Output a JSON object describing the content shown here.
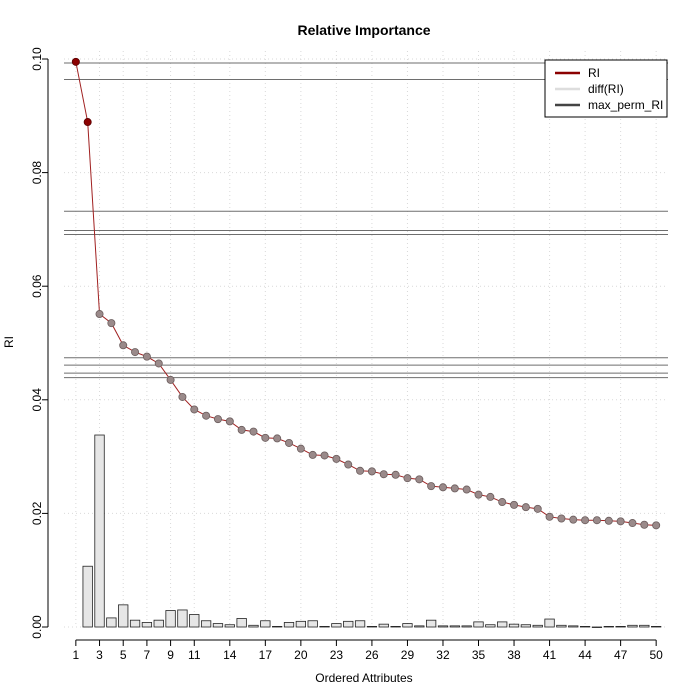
{
  "chart_data": {
    "type": "line",
    "title": "Relative Importance",
    "xlabel": "Ordered Attributes",
    "ylabel": "RI",
    "xlim": [
      0,
      51
    ],
    "ylim": [
      0,
      0.1
    ],
    "x_ticks": [
      1,
      3,
      5,
      7,
      9,
      11,
      14,
      17,
      20,
      23,
      26,
      29,
      32,
      35,
      38,
      41,
      44,
      47,
      50
    ],
    "y_ticks": [
      0.0,
      0.02,
      0.04,
      0.06,
      0.08,
      0.1
    ],
    "y_tick_labels": [
      "0.00",
      "0.02",
      "0.04",
      "0.06",
      "0.08",
      "0.10"
    ],
    "grid": true,
    "legend_position": "top-right",
    "legend": [
      {
        "label": "RI",
        "color": "#8B0000"
      },
      {
        "label": "diff(RI)",
        "color": "#DDDDDD"
      },
      {
        "label": "max_perm_RI",
        "color": "#444444"
      }
    ],
    "series": [
      {
        "name": "RI",
        "type": "line",
        "x": [
          1,
          2,
          3,
          4,
          5,
          6,
          7,
          8,
          9,
          10,
          11,
          12,
          13,
          14,
          15,
          16,
          17,
          18,
          19,
          20,
          21,
          22,
          23,
          24,
          25,
          26,
          27,
          28,
          29,
          30,
          31,
          32,
          33,
          34,
          35,
          36,
          37,
          38,
          39,
          40,
          41,
          42,
          43,
          44,
          45,
          46,
          47,
          48,
          49,
          50
        ],
        "values": [
          0.0995,
          0.0889,
          0.0551,
          0.0535,
          0.0496,
          0.0484,
          0.0476,
          0.0464,
          0.0435,
          0.0405,
          0.0383,
          0.0372,
          0.0366,
          0.0362,
          0.0347,
          0.0344,
          0.0333,
          0.0332,
          0.0324,
          0.0314,
          0.0303,
          0.0302,
          0.0296,
          0.0286,
          0.0275,
          0.0274,
          0.0269,
          0.0268,
          0.0262,
          0.026,
          0.0248,
          0.0246,
          0.0244,
          0.0242,
          0.0233,
          0.0229,
          0.022,
          0.0215,
          0.0211,
          0.0208,
          0.0194,
          0.0191,
          0.0189,
          0.0188,
          0.0188,
          0.0187,
          0.0186,
          0.0183,
          0.018,
          0.0179
        ]
      },
      {
        "name": "diff(RI)",
        "type": "bar",
        "x": [
          2,
          3,
          4,
          5,
          6,
          7,
          8,
          9,
          10,
          11,
          12,
          13,
          14,
          15,
          16,
          17,
          18,
          19,
          20,
          21,
          22,
          23,
          24,
          25,
          26,
          27,
          28,
          29,
          30,
          31,
          32,
          33,
          34,
          35,
          36,
          37,
          38,
          39,
          40,
          41,
          42,
          43,
          44,
          45,
          46,
          47,
          48,
          49,
          50
        ],
        "values": [
          0.0107,
          0.0338,
          0.0016,
          0.0039,
          0.0012,
          0.0008,
          0.0012,
          0.0029,
          0.003,
          0.0022,
          0.0011,
          0.0006,
          0.0004,
          0.0015,
          0.0003,
          0.0011,
          0.0001,
          0.0008,
          0.001,
          0.0011,
          0.0001,
          0.0006,
          0.001,
          0.0011,
          0.0001,
          0.0005,
          0.0001,
          0.0006,
          0.0002,
          0.0012,
          0.0002,
          0.0002,
          0.0002,
          0.0009,
          0.0004,
          0.0009,
          0.0005,
          0.0004,
          0.0003,
          0.0014,
          0.0003,
          0.0002,
          0.0001,
          0.0,
          0.0001,
          0.0001,
          0.0003,
          0.0003,
          0.0001
        ]
      },
      {
        "name": "max_perm_RI",
        "type": "hline",
        "values": [
          0.0993,
          0.0964,
          0.0732,
          0.0698,
          0.0691,
          0.0474,
          0.0461,
          0.0447,
          0.0439
        ]
      }
    ]
  }
}
